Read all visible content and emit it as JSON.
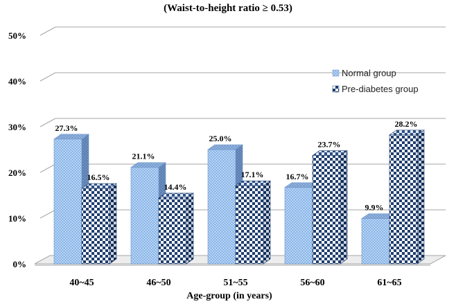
{
  "chart_data": {
    "type": "bar",
    "title": "(Waist-to-height ratio  ≥ 0.53)",
    "xlabel": "Age-group (in years)",
    "ylabel": "",
    "categories": [
      "40~45",
      "46~50",
      "51~55",
      "56~60",
      "61~65"
    ],
    "series": [
      {
        "name": "Normal group",
        "values": [
          27.3,
          21.1,
          25.0,
          16.7,
          9.9
        ],
        "labels": [
          "27.3%",
          "21.1%",
          "25.0%",
          "16.7%",
          "9.9%"
        ],
        "pattern": "dots",
        "color": "#9dc3ee"
      },
      {
        "name": "Pre-diabetes group",
        "values": [
          16.5,
          14.4,
          17.1,
          23.7,
          28.2
        ],
        "labels": [
          "16.5%",
          "14.4%",
          "17.1%",
          "23.7%",
          "28.2%"
        ],
        "pattern": "checker",
        "color": "#1f3e6e"
      }
    ],
    "ylim": [
      0,
      50
    ],
    "yticks": [
      0,
      10,
      20,
      30,
      40,
      50
    ],
    "ytick_labels": [
      "0%",
      "10%",
      "20%",
      "30%",
      "40%",
      "50%"
    ],
    "grid": true,
    "legend": "right",
    "colors": {
      "wall_line": "#a6a6a6",
      "floor": "#ededed",
      "front_light": "#9dc3ee",
      "front_dark": "#1f3e6e"
    }
  }
}
